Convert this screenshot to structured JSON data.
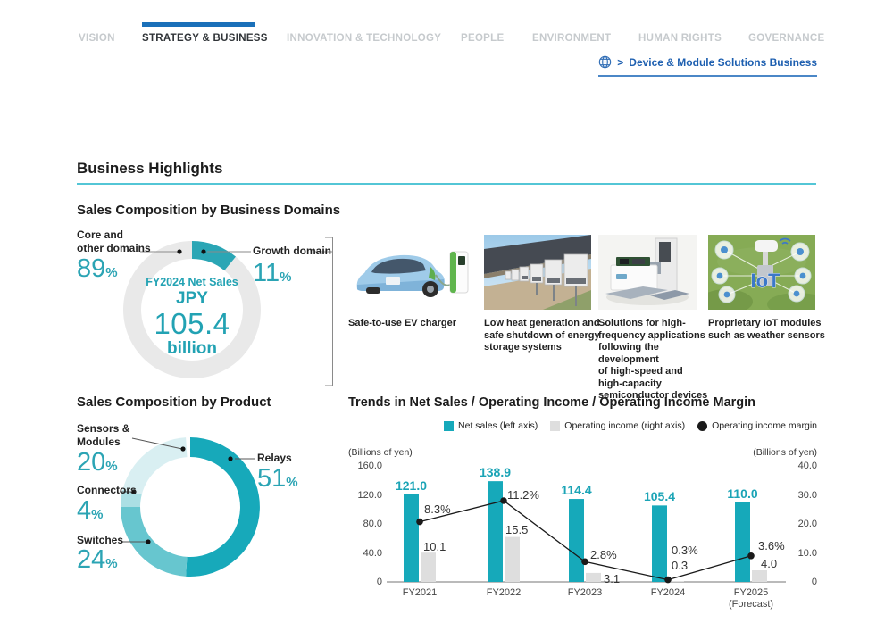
{
  "colors": {
    "teal_bar": "#16a9ba",
    "teal_text": "#1ba4b6",
    "gray_bar": "#dedede",
    "line_black": "#1a1a1a",
    "axis_gray": "#909090",
    "nav_blue": "#1a70b9",
    "link_blue": "#1d5fb0",
    "cyan_rule": "#53c6d6",
    "donut_core_gray": "#e9e9e9",
    "donut_growth_teal": "#2ba6b5",
    "relays": "#17a9ba",
    "switches": "#67c6cf",
    "connectors": "#abdfe4",
    "sensors_modules": "#d9eff2"
  },
  "nav": {
    "items": [
      {
        "label": "VISION",
        "active": false
      },
      {
        "label": "STRATEGY & BUSINESS",
        "active": true
      },
      {
        "label": "INNOVATION & TECHNOLOGY",
        "active": false
      },
      {
        "label": "PEOPLE",
        "active": false
      },
      {
        "label": "ENVIRONMENT",
        "active": false
      },
      {
        "label": "HUMAN RIGHTS",
        "active": false
      },
      {
        "label": "GOVERNANCE",
        "active": false
      }
    ]
  },
  "breadcrumb": {
    "chevron": ">",
    "label": "Device & Module Solutions Business"
  },
  "headings": {
    "main": "Business Highlights",
    "domains": "Sales Composition by Business Domains",
    "product": "Sales Composition by Product",
    "trends": "Trends in Net Sales / Operating Income / Operating Income Margin"
  },
  "domains_donut": {
    "center": {
      "title": "FY2024 Net Sales",
      "currency": "JPY",
      "value": "105.4",
      "unit": "billion"
    },
    "labels": {
      "core": {
        "name": "Core and\nother domains",
        "num": "89",
        "sym": "%"
      },
      "growth": {
        "name": "Growth domain",
        "num": "11",
        "sym": "%"
      }
    }
  },
  "product_donut": {
    "labels": {
      "sensors": {
        "name": "Sensors &\nModules",
        "num": "20",
        "sym": "%"
      },
      "connectors": {
        "name": "Connectors",
        "num": "4",
        "sym": "%"
      },
      "switches": {
        "name": "Switches",
        "num": "24",
        "sym": "%"
      },
      "relays": {
        "name": "Relays",
        "num": "51",
        "sym": "%"
      }
    }
  },
  "figures": [
    {
      "caption": "Safe-to-use EV charger"
    },
    {
      "caption": "Low heat generation and\nsafe shutdown of energy\nstorage systems"
    },
    {
      "caption": "Solutions for high-\nfrequency applications\nfollowing the development\nof high-speed and\nhigh-capacity\nsemiconductor devices"
    },
    {
      "caption": "Proprietary IoT modules\nsuch as weather sensors"
    }
  ],
  "trends": {
    "legend": [
      {
        "label": "Net sales (left axis)"
      },
      {
        "label": "Operating income (right axis)"
      },
      {
        "label": "Operating income margin"
      }
    ],
    "left_unit": "(Billions of yen)",
    "right_unit": "(Billions of yen)"
  },
  "chart_data": [
    {
      "type": "pie",
      "title": "Sales Composition by Business Domains",
      "center_label": "FY2024 Net Sales JPY 105.4 billion",
      "unit": "%",
      "segments": [
        {
          "label": "Growth domain",
          "value": 11,
          "color": "#2ba6b5"
        },
        {
          "label": "Core and other domains",
          "value": 89,
          "color": "#e9e9e9"
        }
      ]
    },
    {
      "type": "pie",
      "title": "Sales Composition by Product",
      "unit": "%",
      "segments": [
        {
          "label": "Relays",
          "value": 51,
          "color": "#17a9ba"
        },
        {
          "label": "Switches",
          "value": 24,
          "color": "#67c6cf"
        },
        {
          "label": "Connectors",
          "value": 4,
          "color": "#abdfe4"
        },
        {
          "label": "Sensors & Modules",
          "value": 20,
          "color": "#d9eff2"
        }
      ]
    },
    {
      "type": "bar",
      "title": "Trends in Net Sales / Operating Income / Operating Income Margin",
      "categories": [
        "FY2021",
        "FY2022",
        "FY2023",
        "FY2024",
        "FY2025 (Forecast)"
      ],
      "series": [
        {
          "name": "Net sales (left axis)",
          "type": "bar",
          "axis": "left",
          "values": [
            121.0,
            138.9,
            114.4,
            105.4,
            110.0
          ]
        },
        {
          "name": "Operating income (right axis)",
          "type": "bar",
          "axis": "right",
          "values": [
            10.1,
            15.5,
            3.1,
            0.3,
            4.0
          ]
        },
        {
          "name": "Operating income margin",
          "type": "line",
          "axis": "percent",
          "unit": "%",
          "values": [
            8.3,
            11.2,
            2.8,
            0.3,
            3.6
          ]
        }
      ],
      "left_axis": {
        "label": "(Billions of yen)",
        "ticks": [
          0,
          40.0,
          80.0,
          120.0,
          160.0
        ],
        "max": 160
      },
      "right_axis": {
        "label": "(Billions of yen)",
        "ticks": [
          0,
          10.0,
          20.0,
          30.0,
          40.0
        ],
        "max": 40
      },
      "grid": false,
      "legend_position": "top-right"
    }
  ]
}
